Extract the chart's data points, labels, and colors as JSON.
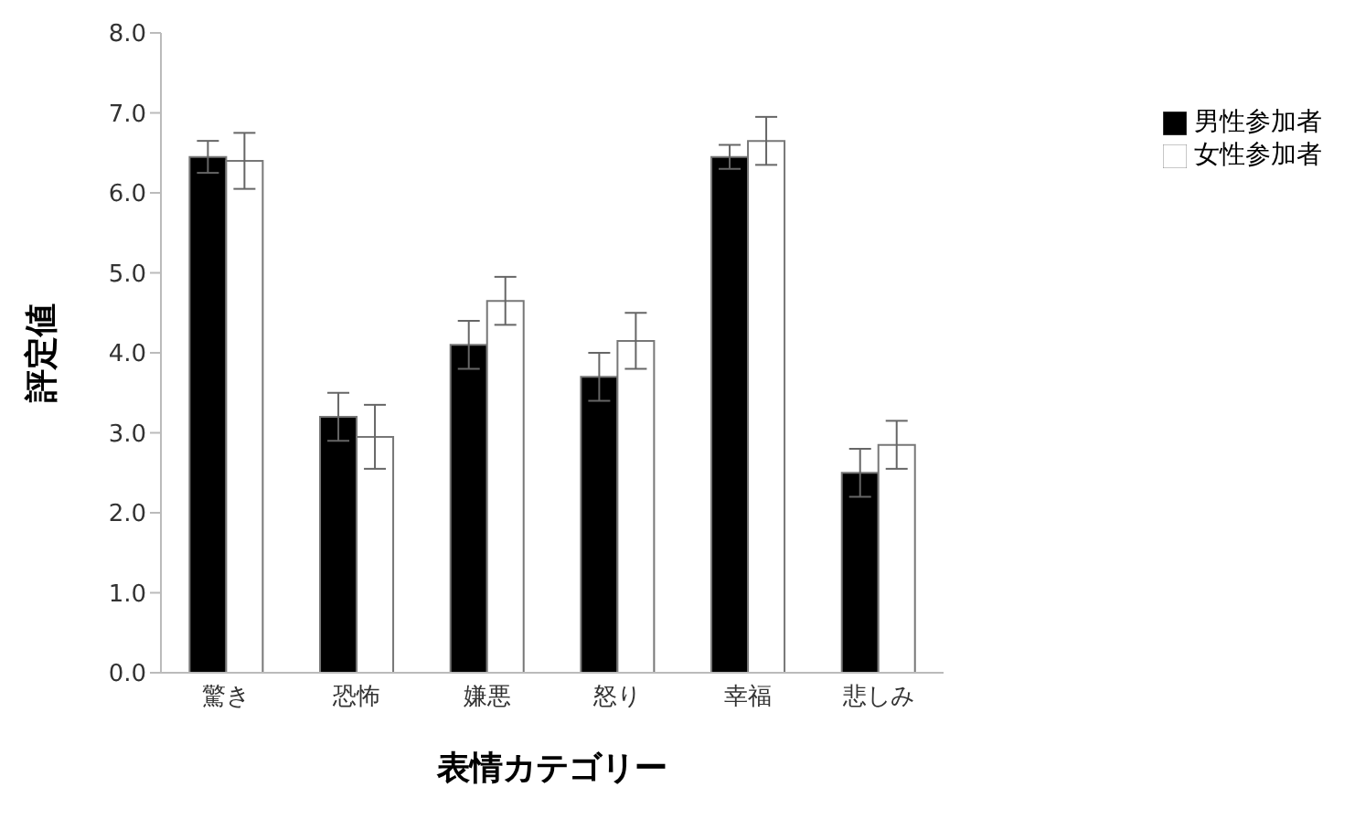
{
  "chart_data": {
    "type": "bar",
    "xlabel": "表情カテゴリー",
    "ylabel": "評定値",
    "categories": [
      "驚き",
      "恐怖",
      "嫌悪",
      "怒り",
      "幸福",
      "悲しみ"
    ],
    "series": [
      {
        "name": "男性参加者",
        "color": "#000000",
        "values": [
          6.45,
          3.2,
          4.1,
          3.7,
          6.45,
          2.5
        ],
        "errors": [
          0.2,
          0.3,
          0.3,
          0.3,
          0.15,
          0.3
        ]
      },
      {
        "name": "女性参加者",
        "color": "#ffffff",
        "values": [
          6.4,
          2.95,
          4.65,
          4.15,
          6.65,
          2.85
        ],
        "errors": [
          0.35,
          0.4,
          0.3,
          0.35,
          0.3,
          0.3
        ]
      }
    ],
    "ylim": [
      0,
      8
    ],
    "yticks": [
      {
        "value": 0,
        "label": "0.0"
      },
      {
        "value": 1,
        "label": "1.0"
      },
      {
        "value": 2,
        "label": "2.0"
      },
      {
        "value": 3,
        "label": "3.0"
      },
      {
        "value": 4,
        "label": "4.0"
      },
      {
        "value": 5,
        "label": "5.0"
      },
      {
        "value": 6,
        "label": "6.0"
      },
      {
        "value": 7,
        "label": "7.0"
      },
      {
        "value": 8,
        "label": "8.0"
      }
    ],
    "grid": false,
    "legend": "right"
  }
}
